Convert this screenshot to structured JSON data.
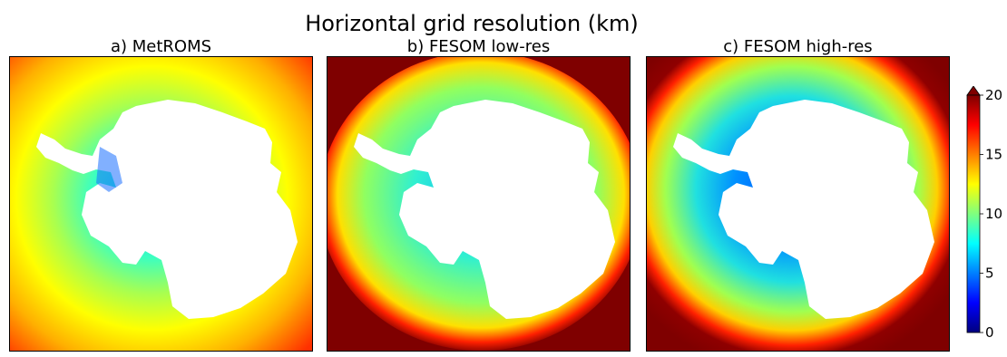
{
  "chart_data": [
    {
      "type": "heatmap",
      "title": "a) MetROMS",
      "colormap": "jet",
      "clim": [
        0,
        20
      ],
      "notes": "land mask in center"
    },
    {
      "type": "heatmap",
      "title": "b) FESOM low-res",
      "colormap": "jet",
      "clim": [
        0,
        20
      ]
    },
    {
      "type": "heatmap",
      "title": "c) FESOM high-res",
      "colormap": "jet",
      "clim": [
        0,
        20
      ]
    }
  ],
  "figure": {
    "suptitle": "Horizontal grid resolution (km)"
  },
  "colorbar": {
    "ticks": [
      0,
      5,
      10,
      15,
      20
    ],
    "extend": "max",
    "colors": [
      "#00007f",
      "#0000ff",
      "#007fff",
      "#00ffff",
      "#7fff7f",
      "#ffff00",
      "#ff7f00",
      "#ff0000",
      "#7f0000"
    ]
  }
}
